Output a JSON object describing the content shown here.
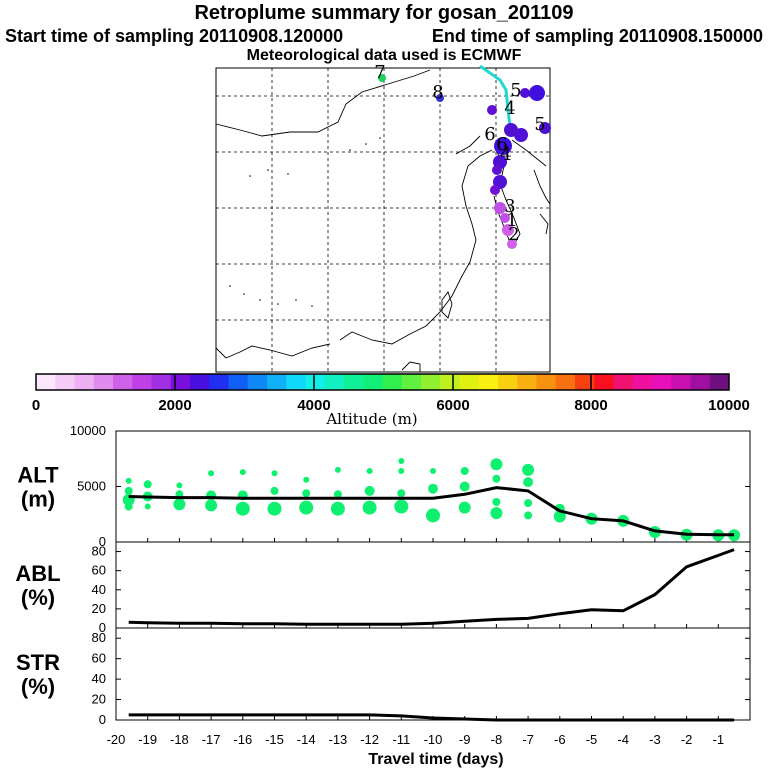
{
  "header": {
    "title": "Retroplume summary for gosan_201109",
    "start": "Start time of sampling 20110908.120000",
    "end": "End time of sampling 20110908.150000",
    "met": "Meteorological data used is ECMWF"
  },
  "colorbar": {
    "labels": [
      "0",
      "2000",
      "4000",
      "6000",
      "8000",
      "10000"
    ],
    "caption": "Altitude (m)",
    "colors": [
      "#fbe7fb",
      "#f5ccf5",
      "#eeb0f2",
      "#e08bee",
      "#d061ea",
      "#bf40e6",
      "#a030e2",
      "#7a10e0",
      "#4a10e0",
      "#2030f0",
      "#1060f8",
      "#1088f8",
      "#10b0f8",
      "#10d8f8",
      "#10f0e8",
      "#10f0c0",
      "#10f098",
      "#10f078",
      "#30f050",
      "#60f040",
      "#90f030",
      "#c0f020",
      "#e0f010",
      "#f8f010",
      "#f8d010",
      "#f8b010",
      "#f89010",
      "#f87010",
      "#f84010",
      "#f81020",
      "#f01070",
      "#f010a0",
      "#e810b8",
      "#c810b0",
      "#a010a0",
      "#701080"
    ]
  },
  "map": {
    "markers": [
      {
        "label": "8",
        "color": "#3030d0"
      },
      {
        "label": "7",
        "color": "#20d060"
      },
      {
        "label": "6",
        "color": "#5010d8"
      },
      {
        "label": "6",
        "color": "#4010e0"
      },
      {
        "label": "5",
        "color": "#5010d0"
      },
      {
        "label": "5",
        "color": "#5010d0"
      },
      {
        "label": "4",
        "color": "#5010d0"
      },
      {
        "label": "4",
        "color": "#5010d0"
      },
      {
        "label": "3",
        "color": "#c050e8"
      },
      {
        "label": "2",
        "color": "#c050e8"
      },
      {
        "label": "1",
        "color": "#c050e8"
      }
    ]
  },
  "panels": {
    "alt": {
      "label1": "ALT",
      "label2": "(m)",
      "yticks": [
        "10000",
        "5000",
        "0"
      ]
    },
    "abl": {
      "label1": "ABL",
      "label2": "(%)",
      "yticks": [
        "80",
        "60",
        "40",
        "20",
        "0"
      ]
    },
    "str": {
      "label1": "STR",
      "label2": "(%)",
      "yticks": [
        "80",
        "60",
        "40",
        "20",
        "0"
      ]
    }
  },
  "xaxis": {
    "label": "Travel time (days)",
    "ticks": [
      "-20",
      "-19",
      "-18",
      "-17",
      "-16",
      "-15",
      "-14",
      "-13",
      "-12",
      "-11",
      "-10",
      "-9",
      "-8",
      "-7",
      "-6",
      "-5",
      "-4",
      "-3",
      "-2",
      "-1"
    ]
  },
  "chart_data": [
    {
      "type": "line",
      "title": "ALT (m)",
      "xlabel": "Travel time (days)",
      "ylabel": "Altitude (m)",
      "xlim": [
        -20,
        0
      ],
      "ylim": [
        0,
        10000
      ],
      "x": [
        -19.6,
        -19,
        -18,
        -17,
        -16,
        -15,
        -14,
        -13,
        -12,
        -11,
        -10,
        -9,
        -8,
        -7,
        -6,
        -5,
        -4,
        -3,
        -2,
        -1,
        -0.5
      ],
      "series": [
        {
          "name": "median altitude",
          "values": [
            4100,
            4050,
            4000,
            4000,
            3950,
            3950,
            3950,
            3950,
            3950,
            3950,
            3950,
            4300,
            4900,
            4600,
            2800,
            2100,
            1900,
            1000,
            700,
            650,
            650
          ]
        }
      ],
      "scatter": [
        [
          -19.6,
          5500,
          3
        ],
        [
          -19.6,
          4600,
          4
        ],
        [
          -19.6,
          3800,
          6
        ],
        [
          -19.6,
          3200,
          4
        ],
        [
          -19,
          5200,
          4
        ],
        [
          -19,
          4100,
          5
        ],
        [
          -19,
          3200,
          3
        ],
        [
          -18,
          5100,
          3
        ],
        [
          -18,
          4300,
          4
        ],
        [
          -18,
          3400,
          6
        ],
        [
          -17,
          6200,
          3
        ],
        [
          -17,
          4200,
          5
        ],
        [
          -17,
          3300,
          6
        ],
        [
          -16,
          6300,
          3
        ],
        [
          -16,
          4200,
          5
        ],
        [
          -16,
          3000,
          7
        ],
        [
          -15,
          6200,
          3
        ],
        [
          -15,
          4600,
          4
        ],
        [
          -15,
          3000,
          7
        ],
        [
          -14,
          5600,
          3
        ],
        [
          -14,
          4400,
          4
        ],
        [
          -14,
          3100,
          7
        ],
        [
          -13,
          6500,
          3
        ],
        [
          -13,
          4300,
          4
        ],
        [
          -13,
          3000,
          7
        ],
        [
          -12,
          6400,
          3
        ],
        [
          -12,
          4600,
          5
        ],
        [
          -12,
          3100,
          7
        ],
        [
          -11,
          7300,
          3
        ],
        [
          -11,
          6400,
          3
        ],
        [
          -11,
          4400,
          4
        ],
        [
          -11,
          3200,
          7
        ],
        [
          -10,
          6400,
          3
        ],
        [
          -10,
          4800,
          5
        ],
        [
          -10,
          2400,
          7
        ],
        [
          -9,
          6400,
          4
        ],
        [
          -9,
          5000,
          5
        ],
        [
          -9,
          3100,
          6
        ],
        [
          -8,
          7000,
          6
        ],
        [
          -8,
          5700,
          4
        ],
        [
          -8,
          3600,
          4
        ],
        [
          -8,
          2600,
          6
        ],
        [
          -7,
          6500,
          6
        ],
        [
          -7,
          5400,
          5
        ],
        [
          -7,
          3500,
          4
        ],
        [
          -7,
          2400,
          4
        ],
        [
          -6,
          3000,
          5
        ],
        [
          -6,
          2300,
          6
        ],
        [
          -5,
          2100,
          6
        ],
        [
          -4,
          1900,
          6
        ],
        [
          -3,
          900,
          6
        ],
        [
          -2,
          650,
          6
        ],
        [
          -1,
          600,
          6
        ],
        [
          -0.5,
          600,
          6
        ]
      ]
    },
    {
      "type": "line",
      "title": "ABL (%)",
      "xlim": [
        -20,
        0
      ],
      "ylim": [
        0,
        90
      ],
      "x": [
        -19.6,
        -19,
        -18,
        -17,
        -16,
        -15,
        -14,
        -13,
        -12,
        -11,
        -10,
        -9,
        -8,
        -7,
        -6,
        -5,
        -4,
        -3,
        -2,
        -1,
        -0.5
      ],
      "series": [
        {
          "name": "ABL fraction",
          "values": [
            6,
            5.5,
            5,
            5,
            4.5,
            4.5,
            4,
            4,
            4,
            4,
            5,
            7,
            9,
            10,
            15,
            19,
            18,
            35,
            64,
            76,
            82
          ]
        }
      ]
    },
    {
      "type": "line",
      "title": "STR (%)",
      "xlim": [
        -20,
        0
      ],
      "ylim": [
        0,
        90
      ],
      "x": [
        -19.6,
        -19,
        -18,
        -17,
        -16,
        -15,
        -14,
        -13,
        -12,
        -11,
        -10,
        -9,
        -8,
        -7,
        -6,
        -5,
        -4,
        -3,
        -2,
        -1,
        -0.5
      ],
      "series": [
        {
          "name": "STR fraction",
          "values": [
            5,
            5,
            5,
            5,
            5,
            5,
            5,
            5,
            5,
            4,
            2,
            1,
            0,
            0,
            0,
            0,
            0,
            0,
            0,
            0,
            0
          ]
        }
      ]
    }
  ]
}
